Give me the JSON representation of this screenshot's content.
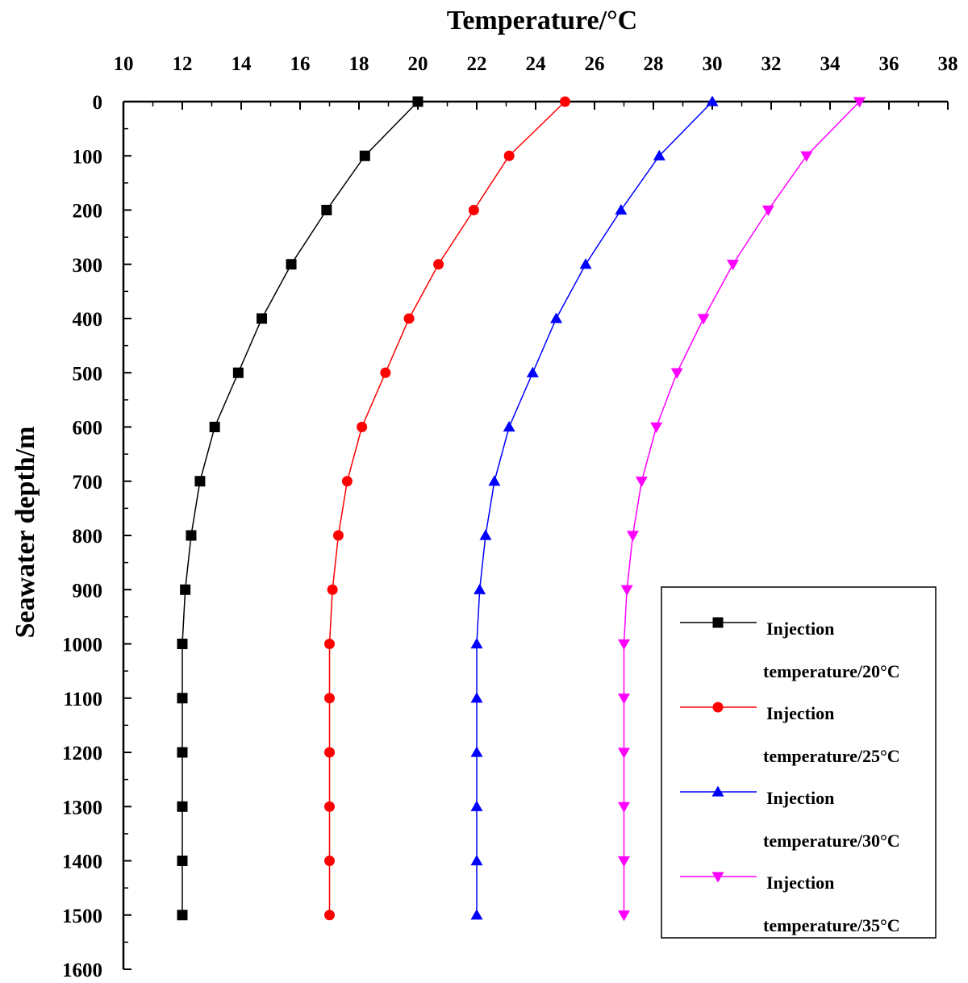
{
  "chart_data": {
    "type": "line",
    "title": "Temperature/°C",
    "xlabel": "Temperature/°C",
    "ylabel": "Seawater depth/m",
    "xlim": [
      10,
      38
    ],
    "ylim": [
      0,
      1600
    ],
    "y_inverted": true,
    "x_axis_position": "top",
    "xticks": [
      10,
      12,
      14,
      16,
      18,
      20,
      22,
      24,
      26,
      28,
      30,
      32,
      34,
      36,
      38
    ],
    "yticks": [
      0,
      100,
      200,
      300,
      400,
      500,
      600,
      700,
      800,
      900,
      1000,
      1100,
      1200,
      1300,
      1400,
      1500,
      1600
    ],
    "grid": false,
    "legend_position": "bottom-right",
    "series": [
      {
        "name_line1": "Injection",
        "name_line2": "temperature/20°C",
        "color": "#000000",
        "marker": "square",
        "depth": [
          0,
          100,
          200,
          300,
          400,
          500,
          600,
          700,
          800,
          900,
          1000,
          1100,
          1200,
          1300,
          1400,
          1500
        ],
        "temperature": [
          20.0,
          18.2,
          16.9,
          15.7,
          14.7,
          13.9,
          13.1,
          12.6,
          12.3,
          12.1,
          12.0,
          12.0,
          12.0,
          12.0,
          12.0,
          12.0
        ]
      },
      {
        "name_line1": "Injection",
        "name_line2": "temperature/25°C",
        "color": "#ff0000",
        "marker": "circle",
        "depth": [
          0,
          100,
          200,
          300,
          400,
          500,
          600,
          700,
          800,
          900,
          1000,
          1100,
          1200,
          1300,
          1400,
          1500
        ],
        "temperature": [
          25.0,
          23.1,
          21.9,
          20.7,
          19.7,
          18.9,
          18.1,
          17.6,
          17.3,
          17.1,
          17.0,
          17.0,
          17.0,
          17.0,
          17.0,
          17.0
        ]
      },
      {
        "name_line1": "Injection",
        "name_line2": "temperature/30°C",
        "color": "#0000ff",
        "marker": "triangle-up",
        "depth": [
          0,
          100,
          200,
          300,
          400,
          500,
          600,
          700,
          800,
          900,
          1000,
          1100,
          1200,
          1300,
          1400,
          1500
        ],
        "temperature": [
          30.0,
          28.2,
          26.9,
          25.7,
          24.7,
          23.9,
          23.1,
          22.6,
          22.3,
          22.1,
          22.0,
          22.0,
          22.0,
          22.0,
          22.0,
          22.0
        ]
      },
      {
        "name_line1": "Injection",
        "name_line2": "temperature/35°C",
        "color": "#ff00ff",
        "marker": "triangle-down",
        "depth": [
          0,
          100,
          200,
          300,
          400,
          500,
          600,
          700,
          800,
          900,
          1000,
          1100,
          1200,
          1300,
          1400,
          1500
        ],
        "temperature": [
          35.0,
          33.2,
          31.9,
          30.7,
          29.7,
          28.8,
          28.1,
          27.6,
          27.3,
          27.1,
          27.0,
          27.0,
          27.0,
          27.0,
          27.0,
          27.0
        ]
      }
    ]
  }
}
